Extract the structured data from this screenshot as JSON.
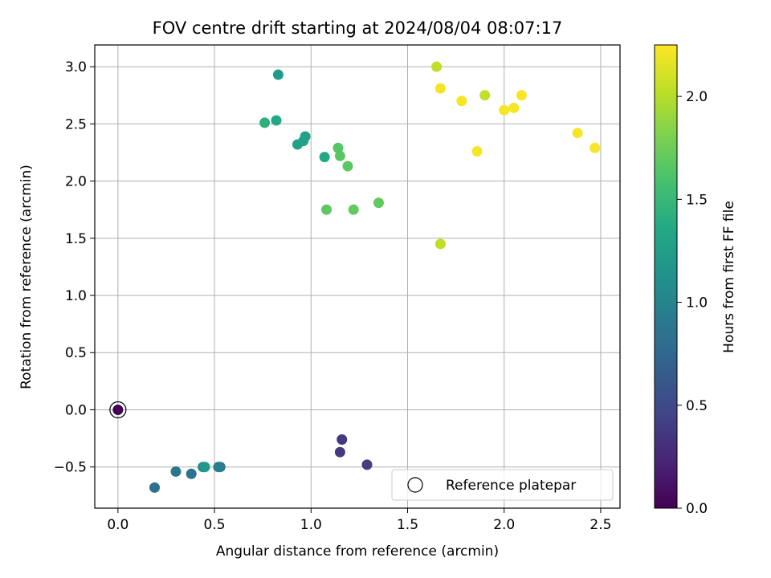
{
  "chart_data": {
    "type": "scatter",
    "title": "FOV centre drift starting at 2024/08/04 08:07:17",
    "xlabel": "Angular distance from reference (arcmin)",
    "ylabel": "Rotation from reference (arcmin)",
    "xlim": [
      -0.12,
      2.6
    ],
    "ylim": [
      -0.86,
      3.19
    ],
    "xticks": [
      0.0,
      0.5,
      1.0,
      1.5,
      2.0,
      2.5
    ],
    "xtick_labels": [
      "0.0",
      "0.5",
      "1.0",
      "1.5",
      "2.0",
      "2.5"
    ],
    "yticks": [
      -0.5,
      0.0,
      0.5,
      1.0,
      1.5,
      2.0,
      2.5,
      3.0
    ],
    "ytick_labels": [
      "−0.5",
      "0.0",
      "0.5",
      "1.0",
      "1.5",
      "2.0",
      "2.5",
      "3.0"
    ],
    "grid": true,
    "colormap": "viridis",
    "colorbar": {
      "label": "Hours from first FF file",
      "range": [
        0.0,
        2.25
      ],
      "ticks": [
        0.0,
        0.5,
        1.0,
        1.5,
        2.0
      ],
      "tick_labels": [
        "0.0",
        "0.5",
        "1.0",
        "1.5",
        "2.0"
      ]
    },
    "legend": {
      "position": "lower-right",
      "entries": [
        "Reference platepar"
      ]
    },
    "reference": {
      "x": 0.0,
      "y": 0.0
    },
    "points": [
      {
        "x": 0.0,
        "y": 0.0,
        "hours": 0.0
      },
      {
        "x": 1.16,
        "y": -0.26,
        "hours": 0.38
      },
      {
        "x": 1.15,
        "y": -0.37,
        "hours": 0.38
      },
      {
        "x": 1.29,
        "y": -0.48,
        "hours": 0.4
      },
      {
        "x": 0.19,
        "y": -0.68,
        "hours": 0.85
      },
      {
        "x": 0.3,
        "y": -0.54,
        "hours": 0.87
      },
      {
        "x": 0.38,
        "y": -0.56,
        "hours": 0.88
      },
      {
        "x": 0.53,
        "y": -0.5,
        "hours": 0.92
      },
      {
        "x": 0.52,
        "y": -0.5,
        "hours": 0.95
      },
      {
        "x": 0.44,
        "y": -0.5,
        "hours": 1.05
      },
      {
        "x": 0.45,
        "y": -0.5,
        "hours": 1.2
      },
      {
        "x": 0.83,
        "y": 2.93,
        "hours": 1.22
      },
      {
        "x": 0.97,
        "y": 2.39,
        "hours": 1.27
      },
      {
        "x": 0.96,
        "y": 2.35,
        "hours": 1.29
      },
      {
        "x": 0.93,
        "y": 2.32,
        "hours": 1.3
      },
      {
        "x": 0.82,
        "y": 2.53,
        "hours": 1.35
      },
      {
        "x": 1.07,
        "y": 2.21,
        "hours": 1.35
      },
      {
        "x": 0.76,
        "y": 2.51,
        "hours": 1.43
      },
      {
        "x": 1.14,
        "y": 2.29,
        "hours": 1.65
      },
      {
        "x": 1.15,
        "y": 2.22,
        "hours": 1.66
      },
      {
        "x": 1.19,
        "y": 2.13,
        "hours": 1.67
      },
      {
        "x": 1.08,
        "y": 1.75,
        "hours": 1.68
      },
      {
        "x": 1.22,
        "y": 1.75,
        "hours": 1.7
      },
      {
        "x": 1.35,
        "y": 1.81,
        "hours": 1.7
      },
      {
        "x": 1.65,
        "y": 3.0,
        "hours": 2.03
      },
      {
        "x": 1.67,
        "y": 1.45,
        "hours": 2.03
      },
      {
        "x": 1.9,
        "y": 2.75,
        "hours": 2.04
      },
      {
        "x": 1.67,
        "y": 2.81,
        "hours": 2.22
      },
      {
        "x": 1.78,
        "y": 2.7,
        "hours": 2.22
      },
      {
        "x": 2.0,
        "y": 2.62,
        "hours": 2.22
      },
      {
        "x": 2.05,
        "y": 2.64,
        "hours": 2.22
      },
      {
        "x": 2.09,
        "y": 2.75,
        "hours": 2.23
      },
      {
        "x": 1.86,
        "y": 2.26,
        "hours": 2.22
      },
      {
        "x": 2.38,
        "y": 2.42,
        "hours": 2.22
      },
      {
        "x": 2.47,
        "y": 2.29,
        "hours": 2.23
      }
    ]
  }
}
